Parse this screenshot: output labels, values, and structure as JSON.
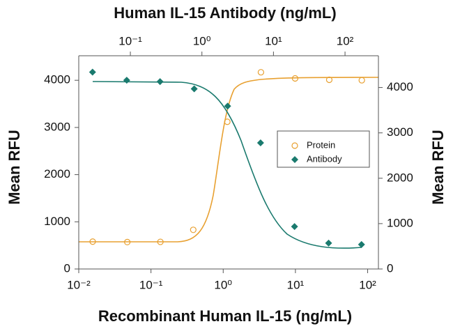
{
  "chart_data": {
    "type": "scatter",
    "title": "Human IL-15 Antibody (ng/mL)",
    "xlabel": "Recombinant Human IL-15 (ng/mL)",
    "ylabel": "Mean RFU",
    "y2label": "Mean RFU",
    "xscale": "log",
    "xlim": [
      0.01,
      141
    ],
    "xticks": [
      {
        "value": 0.01,
        "label": "10⁻²"
      },
      {
        "value": 0.1,
        "label": "10⁻¹"
      },
      {
        "value": 1,
        "label": "10⁰"
      },
      {
        "value": 10,
        "label": "10¹"
      },
      {
        "value": 100,
        "label": "10²"
      }
    ],
    "x2lim": [
      0.019,
      293
    ],
    "x2ticks": [
      {
        "value": 0.1,
        "label": "10⁻¹"
      },
      {
        "value": 1,
        "label": "10⁰"
      },
      {
        "value": 10,
        "label": "10¹"
      },
      {
        "value": 100,
        "label": "10²"
      }
    ],
    "ylim": [
      0,
      4520
    ],
    "yticks": [
      0,
      1000,
      2000,
      3000,
      4000
    ],
    "y2lim": [
      0,
      4700
    ],
    "y2ticks": [
      0,
      1000,
      2000,
      3000,
      4000
    ],
    "legend": "right",
    "series": [
      {
        "name": "Protein",
        "color": "#e8a030",
        "marker": "circle",
        "x": [
          0.0156,
          0.047,
          0.135,
          0.385,
          1.14,
          3.33,
          9.9,
          29.4,
          83
        ],
        "values": [
          580,
          570,
          575,
          830,
          3120,
          4170,
          4040,
          4010,
          4000
        ]
      },
      {
        "name": "Antibody",
        "color": "#1a7a6e",
        "marker": "diamond",
        "axis": "y2",
        "x": [
          0.0296,
          0.089,
          0.26,
          0.78,
          2.29,
          6.6,
          19.7,
          59,
          170
        ],
        "values": [
          4340,
          4160,
          4130,
          3970,
          3590,
          2780,
          935,
          570,
          540
        ]
      }
    ]
  }
}
